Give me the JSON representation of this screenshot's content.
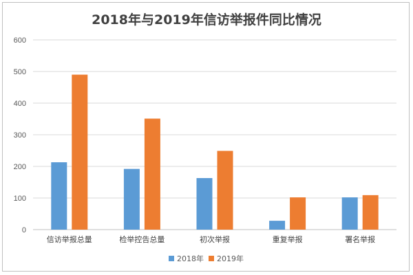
{
  "chart_data": {
    "type": "bar",
    "title": "2018年与2019年信访举报件同比情况",
    "categories": [
      "信访举报总量",
      "检举控告总量",
      "初次举报",
      "重复举报",
      "署名举报"
    ],
    "series": [
      {
        "name": "2018年",
        "values": [
          213,
          192,
          163,
          28,
          102
        ],
        "color": "#5b9bd5"
      },
      {
        "name": "2019年",
        "values": [
          490,
          351,
          249,
          102,
          109
        ],
        "color": "#ed7d31"
      }
    ],
    "yticks": [
      0,
      100,
      200,
      300,
      400,
      500,
      600
    ],
    "ylim": [
      0,
      600
    ],
    "grid": true,
    "legend_position": "bottom",
    "xlabel": "",
    "ylabel": ""
  }
}
